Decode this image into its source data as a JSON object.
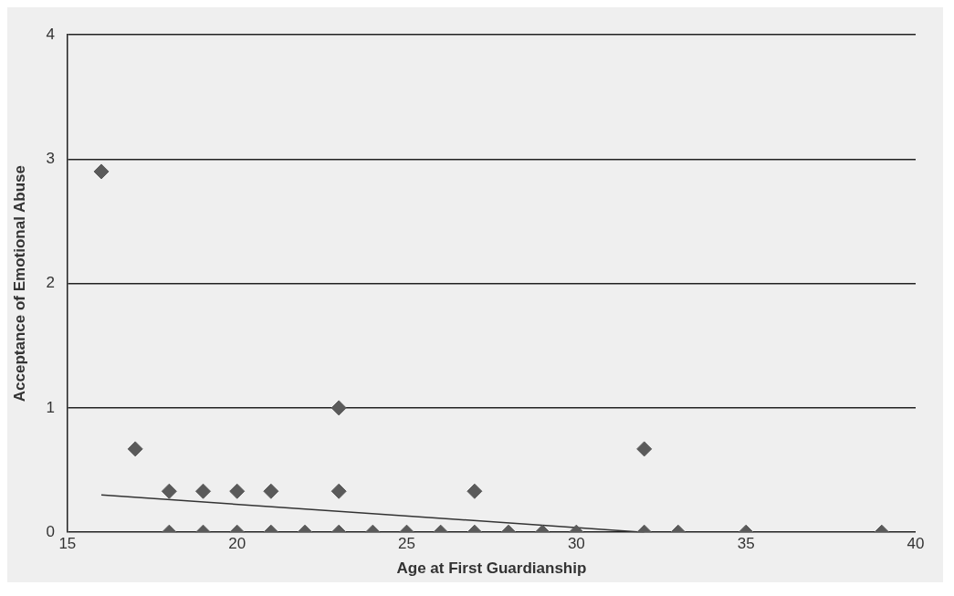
{
  "chart_data": {
    "type": "scatter",
    "xlabel": "Age at First Guardianship",
    "ylabel": "Acceptance of Emotional Abuse",
    "xlim": [
      15,
      40
    ],
    "xticks": [
      15,
      20,
      25,
      30,
      35,
      40
    ],
    "ylim": [
      0,
      4
    ],
    "yticks": [
      0,
      1,
      2,
      3,
      4
    ],
    "grid": "y",
    "legend": false,
    "marker": "diamond",
    "series": [
      {
        "color": "#5a5a5a",
        "x": [
          16,
          17,
          18,
          19,
          20,
          21,
          23,
          23,
          27,
          32,
          18,
          19,
          20,
          21,
          22,
          23,
          24,
          25,
          26,
          27,
          28,
          29,
          30,
          32,
          33,
          35,
          39
        ],
        "values": [
          2.9,
          0.67,
          0.33,
          0.33,
          0.33,
          0.33,
          1,
          0.33,
          0.33,
          0.67,
          0,
          0,
          0,
          0,
          0,
          0,
          0,
          0,
          0,
          0,
          0,
          0,
          0,
          0,
          0,
          0,
          0
        ]
      },
      {
        "type": "line",
        "color": "#333333",
        "marker": "none",
        "x": [
          16,
          32
        ],
        "values": [
          0.3,
          0
        ]
      }
    ]
  }
}
